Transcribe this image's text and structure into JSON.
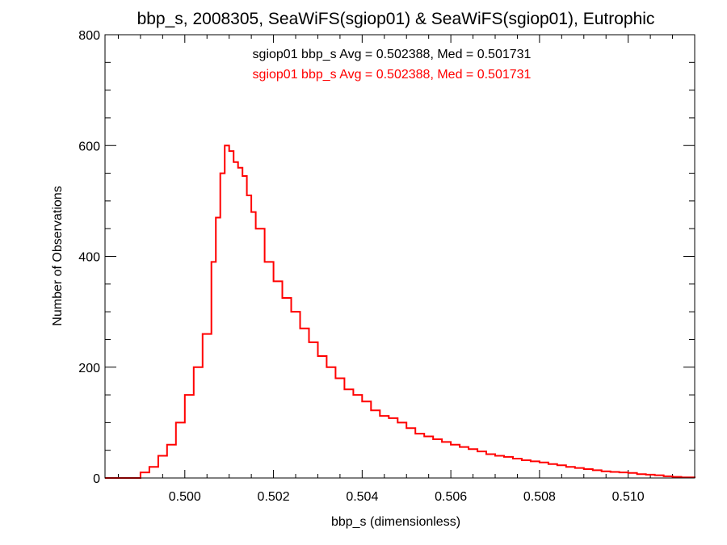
{
  "chart_data": {
    "type": "line",
    "title": "bbp_s, 2008305, SeaWiFS(sgiop01) & SeaWiFS(sgiop01), Eutrophic",
    "xlabel": "bbp_s (dimensionless)",
    "ylabel": "Number of Observations",
    "xlim": [
      0.4982,
      0.5115
    ],
    "ylim": [
      0,
      800
    ],
    "x_ticks": [
      0.5,
      0.502,
      0.504,
      0.506,
      0.508,
      0.51
    ],
    "x_tick_labels": [
      "0.500",
      "0.502",
      "0.504",
      "0.506",
      "0.508",
      "0.510"
    ],
    "y_ticks": [
      0,
      200,
      400,
      600,
      800
    ],
    "y_tick_labels": [
      "0",
      "200",
      "400",
      "600",
      "800"
    ],
    "grid": false,
    "annotations": [
      {
        "text": "sgiop01 bbp_s Avg = 0.502388, Med = 0.501731",
        "color": "#000000"
      },
      {
        "text": "sgiop01 bbp_s Avg = 0.502388, Med = 0.501731",
        "color": "#ff0000"
      }
    ],
    "series": [
      {
        "color": "#ff0000",
        "step": true,
        "points": [
          [
            0.4982,
            0
          ],
          [
            0.4988,
            0
          ],
          [
            0.499,
            10
          ],
          [
            0.4992,
            20
          ],
          [
            0.4994,
            40
          ],
          [
            0.4996,
            60
          ],
          [
            0.4998,
            100
          ],
          [
            0.5,
            150
          ],
          [
            0.5002,
            200
          ],
          [
            0.5004,
            260
          ],
          [
            0.5006,
            390
          ],
          [
            0.5007,
            470
          ],
          [
            0.5008,
            550
          ],
          [
            0.5009,
            600
          ],
          [
            0.501,
            590
          ],
          [
            0.5011,
            570
          ],
          [
            0.5012,
            560
          ],
          [
            0.5013,
            545
          ],
          [
            0.5014,
            510
          ],
          [
            0.5015,
            480
          ],
          [
            0.5016,
            450
          ],
          [
            0.5018,
            390
          ],
          [
            0.502,
            355
          ],
          [
            0.5022,
            325
          ],
          [
            0.5024,
            300
          ],
          [
            0.5026,
            270
          ],
          [
            0.5028,
            245
          ],
          [
            0.503,
            220
          ],
          [
            0.5032,
            200
          ],
          [
            0.5034,
            180
          ],
          [
            0.5036,
            160
          ],
          [
            0.5038,
            150
          ],
          [
            0.504,
            138
          ],
          [
            0.5042,
            122
          ],
          [
            0.5044,
            112
          ],
          [
            0.5046,
            108
          ],
          [
            0.5048,
            100
          ],
          [
            0.505,
            90
          ],
          [
            0.5052,
            80
          ],
          [
            0.5054,
            75
          ],
          [
            0.5056,
            70
          ],
          [
            0.5058,
            65
          ],
          [
            0.506,
            60
          ],
          [
            0.5062,
            56
          ],
          [
            0.5064,
            52
          ],
          [
            0.5066,
            48
          ],
          [
            0.5068,
            43
          ],
          [
            0.507,
            40
          ],
          [
            0.5072,
            38
          ],
          [
            0.5074,
            35
          ],
          [
            0.5076,
            32
          ],
          [
            0.5078,
            30
          ],
          [
            0.508,
            28
          ],
          [
            0.5082,
            25
          ],
          [
            0.5084,
            23
          ],
          [
            0.5086,
            20
          ],
          [
            0.5088,
            18
          ],
          [
            0.509,
            16
          ],
          [
            0.5092,
            14
          ],
          [
            0.5094,
            12
          ],
          [
            0.5096,
            11
          ],
          [
            0.5098,
            10
          ],
          [
            0.51,
            9
          ],
          [
            0.5102,
            7
          ],
          [
            0.5104,
            6
          ],
          [
            0.5106,
            5
          ],
          [
            0.5108,
            3
          ],
          [
            0.511,
            2
          ],
          [
            0.5112,
            1
          ],
          [
            0.5115,
            0
          ]
        ]
      }
    ]
  }
}
